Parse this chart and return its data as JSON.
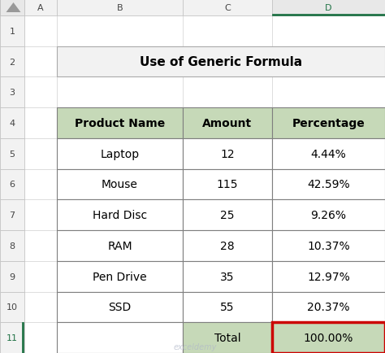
{
  "title": "Use of Generic Formula",
  "headers": [
    "Product Name",
    "Amount",
    "Percentage"
  ],
  "rows": [
    [
      "Laptop",
      "12",
      "4.44%"
    ],
    [
      "Mouse",
      "115",
      "42.59%"
    ],
    [
      "Hard Disc",
      "25",
      "9.26%"
    ],
    [
      "RAM",
      "28",
      "10.37%"
    ],
    [
      "Pen Drive",
      "35",
      "12.97%"
    ],
    [
      "SSD",
      "55",
      "20.37%"
    ]
  ],
  "total_row": [
    "",
    "Total",
    "100.00%"
  ],
  "outer_bg": "#d6d6d6",
  "header_fill": "#c6d9b8",
  "total_fill": "#c6d9b8",
  "row_fill": "#ffffff",
  "title_fill": "#f2f2f2",
  "red_border_color": "#cc0000",
  "excel_col_header_bg": "#f2f2f2",
  "excel_col_header_selected_bg": "#e8e8e8",
  "excel_row_header_bg": "#f2f2f2",
  "excel_row_header_selected_color": "#217346",
  "excel_selected_col_underline": "#217346",
  "excel_grid_color": "#d0d0d0",
  "table_border_color": "#7f7f7f",
  "watermark_color": "#b0b8c8",
  "col_letters": [
    "A",
    "B",
    "C",
    "D"
  ],
  "row_numbers": [
    "1",
    "2",
    "3",
    "4",
    "5",
    "6",
    "7",
    "8",
    "9",
    "10",
    "11"
  ],
  "selected_col_idx": 3,
  "selected_row_idx": 10
}
